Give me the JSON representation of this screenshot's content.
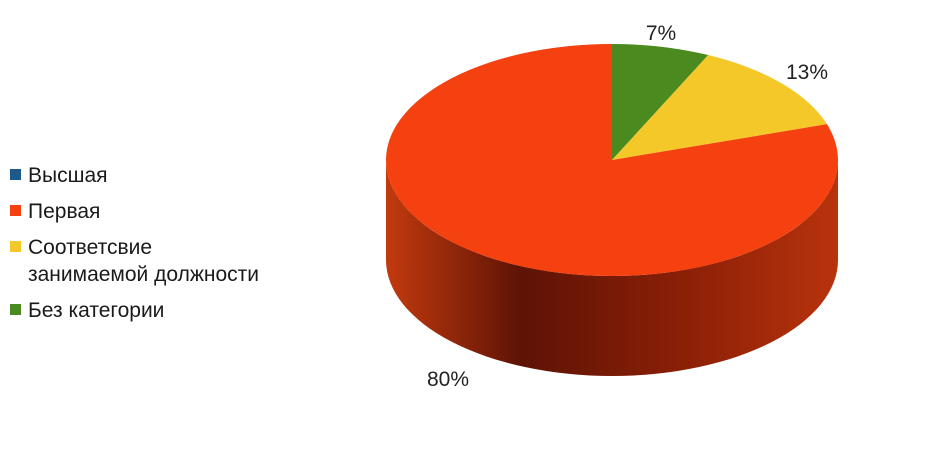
{
  "chart_data": {
    "type": "pie",
    "three_d": true,
    "categories": [
      "Высшая",
      "Первая",
      "Соответсвие занимаемой должности",
      "Без категории"
    ],
    "values": [
      0,
      80,
      13,
      7
    ],
    "data_labels": [
      "",
      "80%",
      "13%",
      "7%"
    ],
    "colors": [
      "#1c5a8c",
      "#f5410f",
      "#f5c82a",
      "#4a8a1e"
    ],
    "legend_position": "left"
  },
  "legend": {
    "items": [
      {
        "label": "Высшая",
        "color": "#1c5a8c"
      },
      {
        "label": "Первая",
        "color": "#f5410f"
      },
      {
        "label": "Соответсвие\nзанимаемой должности",
        "color": "#f5c82a"
      },
      {
        "label": "Без категории",
        "color": "#4a8a1e"
      }
    ]
  }
}
